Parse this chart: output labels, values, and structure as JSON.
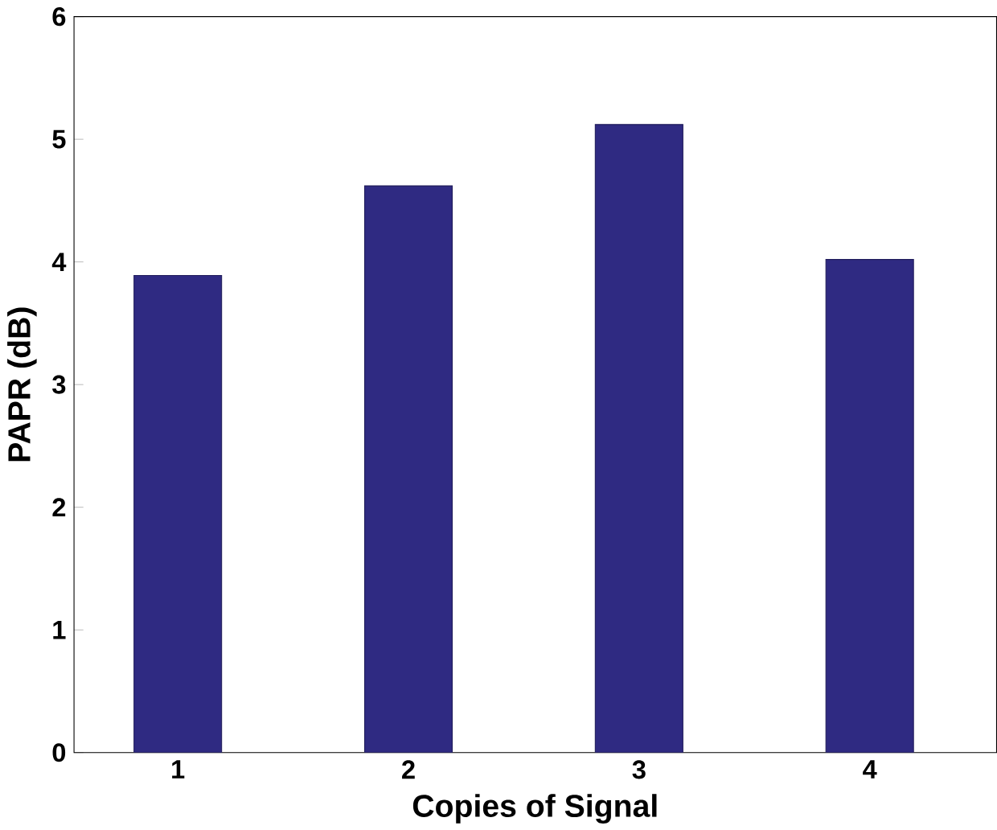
{
  "chart_data": {
    "type": "bar",
    "xlabel": "Copies of Signal",
    "ylabel": "PAPR (dB)",
    "categories": [
      "1",
      "2",
      "3",
      "4"
    ],
    "values": [
      3.89,
      4.62,
      5.12,
      4.02
    ],
    "color": "#2f2a82",
    "ylim": [
      0,
      6
    ],
    "yticks": [
      0,
      1,
      2,
      3,
      4,
      5,
      6
    ],
    "grid": false
  }
}
